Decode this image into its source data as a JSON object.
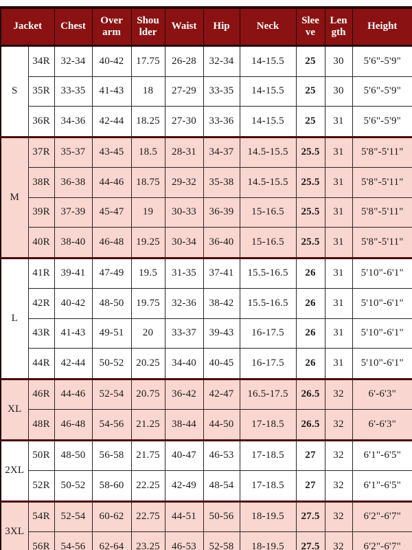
{
  "colors": {
    "header_bg": "#8b1212",
    "header_text": "#ffffff",
    "row_pink": "#f9d6cf",
    "row_white": "#ffffff",
    "grid_line": "#2b2424",
    "group_separator": "#4a0808"
  },
  "table": {
    "header": {
      "jacket": "Jacket",
      "chest": "Chest",
      "overarm": "Over\narm",
      "shoulder": "Shou\nlder",
      "waist": "Waist",
      "hip": "Hip",
      "neck": "Neck",
      "sleeve": "Slee\nve",
      "length": "Len\ngth",
      "height": "Height"
    },
    "column_keys": [
      "size",
      "chest",
      "overarm",
      "shoulder",
      "waist",
      "hip",
      "neck",
      "sleeve",
      "length",
      "height"
    ],
    "groups": [
      {
        "label": "S",
        "tone": "white",
        "rows": [
          {
            "size": "34R",
            "chest": "32-34",
            "overarm": "40-42",
            "shoulder": "17.75",
            "waist": "26-28",
            "hip": "32-34",
            "neck": "14-15.5",
            "sleeve": "25",
            "length": "30",
            "height": "5'6\"-5'9\""
          },
          {
            "size": "35R",
            "chest": "33-35",
            "overarm": "41-43",
            "shoulder": "18",
            "waist": "27-29",
            "hip": "33-35",
            "neck": "14-15.5",
            "sleeve": "25",
            "length": "30",
            "height": "5'6\"-5'9\""
          },
          {
            "size": "36R",
            "chest": "34-36",
            "overarm": "42-44",
            "shoulder": "18.25",
            "waist": "27-30",
            "hip": "33-36",
            "neck": "14-15.5",
            "sleeve": "25",
            "length": "31",
            "height": "5'6\"-5'9\""
          }
        ]
      },
      {
        "label": "M",
        "tone": "pink",
        "rows": [
          {
            "size": "37R",
            "chest": "35-37",
            "overarm": "43-45",
            "shoulder": "18.5",
            "waist": "28-31",
            "hip": "34-37",
            "neck": "14.5-15.5",
            "sleeve": "25.5",
            "length": "31",
            "height": "5'8\"-5'11\""
          },
          {
            "size": "38R",
            "chest": "36-38",
            "overarm": "44-46",
            "shoulder": "18.75",
            "waist": "29-32",
            "hip": "35-38",
            "neck": "14.5-15.5",
            "sleeve": "25.5",
            "length": "31",
            "height": "5'8\"-5'11\""
          },
          {
            "size": "39R",
            "chest": "37-39",
            "overarm": "45-47",
            "shoulder": "19",
            "waist": "30-33",
            "hip": "36-39",
            "neck": "15-16.5",
            "sleeve": "25.5",
            "length": "31",
            "height": "5'8\"-5'11\""
          },
          {
            "size": "40R",
            "chest": "38-40",
            "overarm": "46-48",
            "shoulder": "19.25",
            "waist": "30-34",
            "hip": "36-40",
            "neck": "15-16.5",
            "sleeve": "25.5",
            "length": "31",
            "height": "5'8\"-5'11\""
          }
        ]
      },
      {
        "label": "L",
        "tone": "white",
        "rows": [
          {
            "size": "41R",
            "chest": "39-41",
            "overarm": "47-49",
            "shoulder": "19.5",
            "waist": "31-35",
            "hip": "37-41",
            "neck": "15.5-16.5",
            "sleeve": "26",
            "length": "31",
            "height": "5'10\"-6'1\""
          },
          {
            "size": "42R",
            "chest": "40-42",
            "overarm": "48-50",
            "shoulder": "19.75",
            "waist": "32-36",
            "hip": "38-42",
            "neck": "15.5-16.5",
            "sleeve": "26",
            "length": "31",
            "height": "5'10\"-6'1\""
          },
          {
            "size": "43R",
            "chest": "41-43",
            "overarm": "49-51",
            "shoulder": "20",
            "waist": "33-37",
            "hip": "39-43",
            "neck": "16-17.5",
            "sleeve": "26",
            "length": "31",
            "height": "5'10\"-6'1\""
          },
          {
            "size": "44R",
            "chest": "42-44",
            "overarm": "50-52",
            "shoulder": "20.25",
            "waist": "34-40",
            "hip": "40-45",
            "neck": "16-17.5",
            "sleeve": "26",
            "length": "31",
            "height": "5'10\"-6'1\""
          }
        ]
      },
      {
        "label": "XL",
        "tone": "pink",
        "rows": [
          {
            "size": "46R",
            "chest": "44-46",
            "overarm": "52-54",
            "shoulder": "20.75",
            "waist": "36-42",
            "hip": "42-47",
            "neck": "16.5-17.5",
            "sleeve": "26.5",
            "length": "32",
            "height": "6'-6'3\""
          },
          {
            "size": "48R",
            "chest": "46-48",
            "overarm": "54-56",
            "shoulder": "21.25",
            "waist": "38-44",
            "hip": "44-50",
            "neck": "17-18.5",
            "sleeve": "26.5",
            "length": "32",
            "height": "6'-6'3\""
          }
        ]
      },
      {
        "label": "2XL",
        "tone": "white",
        "rows": [
          {
            "size": "50R",
            "chest": "48-50",
            "overarm": "56-58",
            "shoulder": "21.75",
            "waist": "40-47",
            "hip": "46-53",
            "neck": "17-18.5",
            "sleeve": "27",
            "length": "32",
            "height": "6'1\"-6'5\""
          },
          {
            "size": "52R",
            "chest": "50-52",
            "overarm": "58-60",
            "shoulder": "22.25",
            "waist": "42-49",
            "hip": "48-54",
            "neck": "17-18.5",
            "sleeve": "27",
            "length": "32",
            "height": "6'1\"-6'5\""
          }
        ]
      },
      {
        "label": "3XL",
        "tone": "pink",
        "rows": [
          {
            "size": "54R",
            "chest": "52-54",
            "overarm": "60-62",
            "shoulder": "22.75",
            "waist": "44-51",
            "hip": "50-56",
            "neck": "18-19.5",
            "sleeve": "27.5",
            "length": "32",
            "height": "6'2\"-6'7\""
          },
          {
            "size": "56R",
            "chest": "54-56",
            "overarm": "62-64",
            "shoulder": "23.25",
            "waist": "46-53",
            "hip": "52-58",
            "neck": "18-19.5",
            "sleeve": "27.5",
            "length": "32",
            "height": "6'2\"-6'7\""
          }
        ]
      }
    ]
  }
}
